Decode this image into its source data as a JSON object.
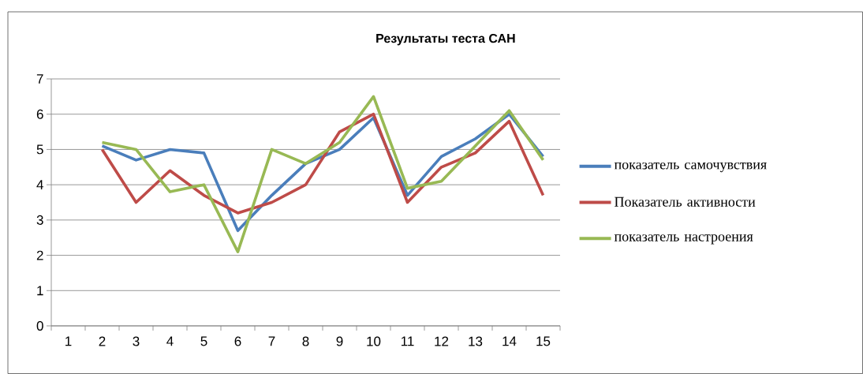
{
  "chart_data": {
    "type": "line",
    "title": "Результаты теста САН",
    "categories": [
      "1",
      "2",
      "3",
      "4",
      "5",
      "6",
      "7",
      "8",
      "9",
      "10",
      "11",
      "12",
      "13",
      "14",
      "15"
    ],
    "series": [
      {
        "name": "показатель самочувствия",
        "color": "#4a7ebb",
        "values": [
          null,
          5.1,
          4.7,
          5.0,
          4.9,
          2.7,
          3.7,
          4.6,
          5.0,
          5.9,
          3.7,
          4.8,
          5.3,
          6.0,
          4.8
        ]
      },
      {
        "name": "Показатель активности",
        "color": "#be4b48",
        "values": [
          null,
          5.0,
          3.5,
          4.4,
          3.7,
          3.2,
          3.5,
          4.0,
          5.5,
          6.0,
          3.5,
          4.5,
          4.9,
          5.8,
          3.7
        ]
      },
      {
        "name": "показатель настроения",
        "color": "#98b954",
        "values": [
          null,
          5.2,
          5.0,
          3.8,
          4.0,
          2.1,
          5.0,
          4.6,
          5.2,
          6.5,
          3.9,
          4.1,
          5.1,
          6.1,
          4.7
        ]
      }
    ],
    "ylim": [
      0,
      7
    ],
    "yticks": [
      0,
      1,
      2,
      3,
      4,
      5,
      6,
      7
    ],
    "grid": "y",
    "legend": "right",
    "marker": "none",
    "line_style": "solid"
  }
}
